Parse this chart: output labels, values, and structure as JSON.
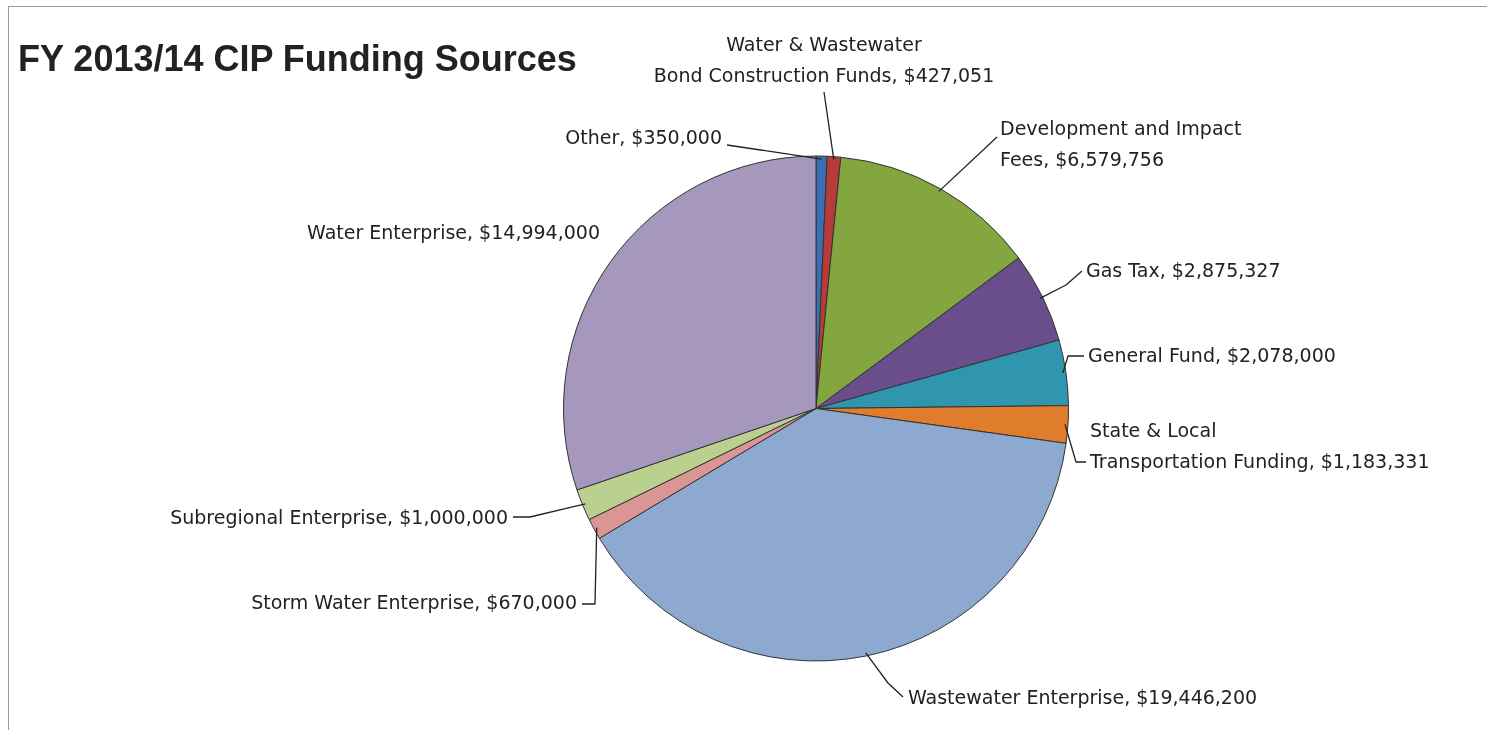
{
  "chart_data": {
    "type": "pie",
    "title": "FY 2013/14 CIP Funding Sources",
    "categories": [
      "Other",
      "Water & Wastewater Bond Construction Funds",
      "Development and Impact Fees",
      "Gas Tax",
      "General Fund",
      "State & Local Transportation Funding",
      "Wastewater Enterprise",
      "Storm Water Enterprise",
      "Subregional Enterprise",
      "Water Enterprise"
    ],
    "values": [
      350000,
      427051,
      6579756,
      2875327,
      2078000,
      1183331,
      19446200,
      670000,
      1000000,
      14994000
    ],
    "value_labels": [
      "$350,000",
      "$427,051",
      "$6,579,756",
      "$2,875,327",
      "$2,078,000",
      "$1,183,331",
      "$19,446,200",
      "$670,000",
      "$1,000,000",
      "$14,994,000"
    ],
    "colors": [
      "#3a6fb3",
      "#b63c3a",
      "#83a641",
      "#6a4d8b",
      "#3096b0",
      "#df7d2c",
      "#8ea9d0",
      "#da9695",
      "#b9d08f",
      "#a697bd"
    ],
    "legend": false
  }
}
